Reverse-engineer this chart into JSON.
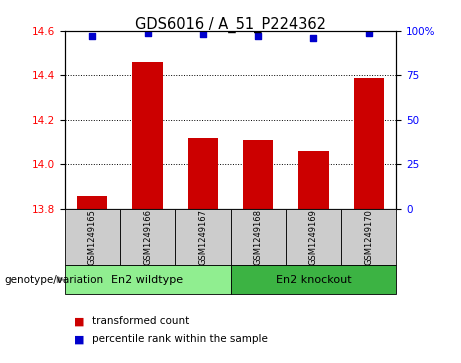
{
  "title": "GDS6016 / A_51_P224362",
  "samples": [
    "GSM1249165",
    "GSM1249166",
    "GSM1249167",
    "GSM1249168",
    "GSM1249169",
    "GSM1249170"
  ],
  "bar_values": [
    13.855,
    14.46,
    14.12,
    14.11,
    14.06,
    14.39
  ],
  "bar_bottom": 13.8,
  "percentile_values": [
    97,
    99,
    98,
    97,
    96,
    99
  ],
  "bar_color": "#cc0000",
  "dot_color": "#0000cc",
  "ylim_left": [
    13.8,
    14.6
  ],
  "ylim_right": [
    0,
    100
  ],
  "yticks_left": [
    13.8,
    14.0,
    14.2,
    14.4,
    14.6
  ],
  "yticks_right": [
    0,
    25,
    50,
    75,
    100
  ],
  "ytick_labels_right": [
    "0",
    "25",
    "50",
    "75",
    "100%"
  ],
  "group_labels": [
    "En2 wildtype",
    "En2 knockout"
  ],
  "group_ranges": [
    [
      0,
      2
    ],
    [
      3,
      5
    ]
  ],
  "group_color_wildtype": "#90ee90",
  "group_color_knockout": "#3cb343",
  "group_label_prefix": "genotype/variation",
  "legend_items": [
    {
      "label": "transformed count",
      "color": "#cc0000"
    },
    {
      "label": "percentile rank within the sample",
      "color": "#0000cc"
    }
  ],
  "sample_box_color": "#cccccc"
}
